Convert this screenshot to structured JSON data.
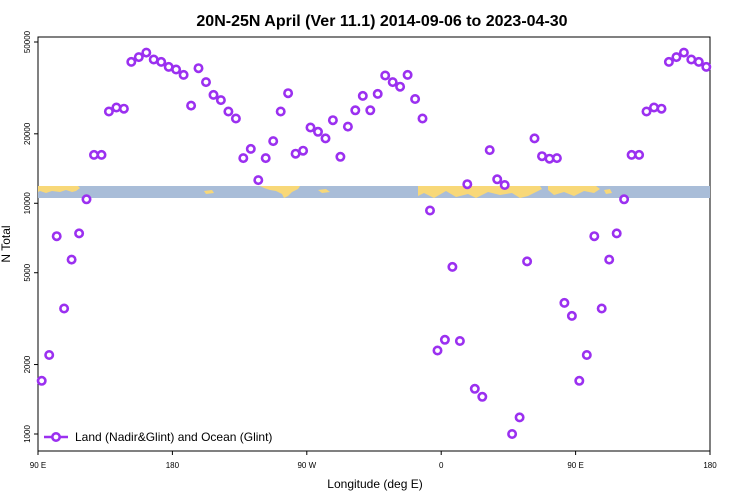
{
  "chart_data": {
    "type": "scatter",
    "title": "20N-25N April (Ver 11.1)   2014-09-06 to 2023-04-30",
    "xlabel": "Longitude (deg E)",
    "ylabel": "N Total",
    "x_ticks": [
      {
        "value": 90,
        "label": "90 E"
      },
      {
        "value": 180,
        "label": "180"
      },
      {
        "value": 270,
        "label": "90 W"
      },
      {
        "value": 360,
        "label": "0"
      },
      {
        "value": 450,
        "label": "90 E"
      },
      {
        "value": 540,
        "label": "180"
      }
    ],
    "y_ticks": [
      {
        "value": 1000,
        "label": "1000"
      },
      {
        "value": 2000,
        "label": "2000"
      },
      {
        "value": 5000,
        "label": "5000"
      },
      {
        "value": 10000,
        "label": "10000"
      },
      {
        "value": 20000,
        "label": "20000"
      },
      {
        "value": 50000,
        "label": "50000"
      }
    ],
    "xlim": [
      90,
      540
    ],
    "ylim": [
      900,
      52000
    ],
    "y_scale": "log",
    "grid": false,
    "legend_position": "bottom-left",
    "series": [
      {
        "name": "Land (Nadir&Glint) and Ocean (Glint)",
        "color": "#9B30F0",
        "points": [
          [
            92.5,
            1700
          ],
          [
            97.5,
            2200
          ],
          [
            102.5,
            7200
          ],
          [
            107.5,
            3500
          ],
          [
            112.5,
            5700
          ],
          [
            117.5,
            7400
          ],
          [
            122.5,
            10400
          ],
          [
            127.5,
            16200
          ],
          [
            132.5,
            16200
          ],
          [
            137.5,
            25000
          ],
          [
            142.5,
            26000
          ],
          [
            147.5,
            25700
          ],
          [
            152.5,
            41000
          ],
          [
            157.5,
            43000
          ],
          [
            162.5,
            45000
          ],
          [
            167.5,
            42000
          ],
          [
            172.5,
            41000
          ],
          [
            177.5,
            39000
          ],
          [
            182.5,
            38000
          ],
          [
            187.5,
            36000
          ],
          [
            192.5,
            26500
          ],
          [
            197.5,
            38500
          ],
          [
            202.5,
            33500
          ],
          [
            207.5,
            29500
          ],
          [
            212.5,
            28000
          ],
          [
            217.5,
            25000
          ],
          [
            222.5,
            23300
          ],
          [
            227.5,
            15700
          ],
          [
            232.5,
            17200
          ],
          [
            237.5,
            12600
          ],
          [
            242.5,
            15700
          ],
          [
            247.5,
            18600
          ],
          [
            252.5,
            25000
          ],
          [
            257.5,
            30000
          ],
          [
            262.5,
            16400
          ],
          [
            267.5,
            16900
          ],
          [
            272.5,
            21300
          ],
          [
            277.5,
            20400
          ],
          [
            282.5,
            19100
          ],
          [
            287.5,
            22900
          ],
          [
            292.5,
            15900
          ],
          [
            297.5,
            21500
          ],
          [
            302.5,
            25300
          ],
          [
            307.5,
            29200
          ],
          [
            312.5,
            25300
          ],
          [
            317.5,
            29800
          ],
          [
            322.5,
            35800
          ],
          [
            327.5,
            33500
          ],
          [
            332.5,
            32000
          ],
          [
            337.5,
            36000
          ],
          [
            342.5,
            28300
          ],
          [
            347.5,
            23300
          ],
          [
            352.5,
            9300
          ],
          [
            357.5,
            2300
          ],
          [
            362.5,
            2560
          ],
          [
            367.5,
            5300
          ],
          [
            372.5,
            2530
          ],
          [
            377.5,
            12100
          ],
          [
            382.5,
            1570
          ],
          [
            387.5,
            1450
          ],
          [
            392.5,
            17000
          ],
          [
            397.5,
            12700
          ],
          [
            402.5,
            12000
          ],
          [
            407.5,
            1000
          ],
          [
            412.5,
            1180
          ],
          [
            417.5,
            5600
          ],
          [
            422.5,
            19100
          ],
          [
            427.5,
            16000
          ],
          [
            432.5,
            15600
          ],
          [
            437.5,
            15700
          ],
          [
            442.5,
            3700
          ],
          [
            447.5,
            3250
          ],
          [
            452.5,
            1700
          ],
          [
            457.5,
            2200
          ],
          [
            462.5,
            7200
          ],
          [
            467.5,
            3500
          ],
          [
            472.5,
            5700
          ],
          [
            477.5,
            7400
          ],
          [
            482.5,
            10400
          ],
          [
            487.5,
            16200
          ],
          [
            492.5,
            16200
          ],
          [
            497.5,
            25000
          ],
          [
            502.5,
            26000
          ],
          [
            507.5,
            25700
          ],
          [
            512.5,
            41000
          ],
          [
            517.5,
            43000
          ],
          [
            522.5,
            45000
          ],
          [
            527.5,
            42000
          ],
          [
            532.5,
            41000
          ],
          [
            537.5,
            39000
          ]
        ]
      }
    ]
  },
  "colors": {
    "ocean": "#A9BDD8",
    "land": "#F8D878",
    "marker": "#9B30F0"
  }
}
